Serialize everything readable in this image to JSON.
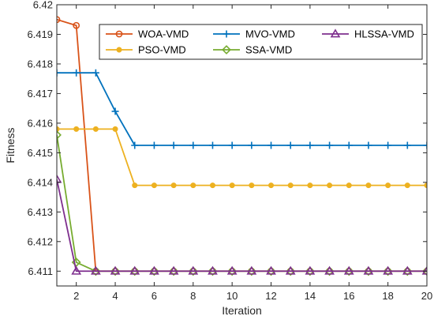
{
  "chart_data": {
    "type": "line",
    "title": "",
    "xlabel": "Iteration",
    "ylabel": "Fitness",
    "xlim": [
      1,
      20
    ],
    "ylim": [
      6.4105,
      6.42
    ],
    "xticks": [
      2,
      4,
      6,
      8,
      10,
      12,
      14,
      16,
      18,
      20
    ],
    "yticks": [
      6.411,
      6.412,
      6.413,
      6.414,
      6.415,
      6.416,
      6.417,
      6.418,
      6.419,
      6.42
    ],
    "ytick_labels": [
      "6.411",
      "6.412",
      "6.413",
      "6.414",
      "6.415",
      "6.416",
      "6.417",
      "6.418",
      "6.419",
      "6.42"
    ],
    "grid": false,
    "legend_position": "top-right",
    "x": [
      1,
      2,
      3,
      4,
      5,
      6,
      7,
      8,
      9,
      10,
      11,
      12,
      13,
      14,
      15,
      16,
      17,
      18,
      19,
      20
    ],
    "series": [
      {
        "name": "WOA-VMD",
        "color": "#D95319",
        "marker": "circle",
        "values": [
          6.4195,
          6.4193,
          6.411,
          6.411,
          6.411,
          6.411,
          6.411,
          6.411,
          6.411,
          6.411,
          6.411,
          6.411,
          6.411,
          6.411,
          6.411,
          6.411,
          6.411,
          6.411,
          6.411,
          6.411
        ]
      },
      {
        "name": "PSO-VMD",
        "color": "#EDB120",
        "marker": "dot",
        "values": [
          6.4158,
          6.4158,
          6.4158,
          6.4158,
          6.4139,
          6.4139,
          6.4139,
          6.4139,
          6.4139,
          6.4139,
          6.4139,
          6.4139,
          6.4139,
          6.4139,
          6.4139,
          6.4139,
          6.4139,
          6.4139,
          6.4139,
          6.4139
        ]
      },
      {
        "name": "MVO-VMD",
        "color": "#0072BD",
        "marker": "plus",
        "values": [
          6.4177,
          6.4177,
          6.4177,
          6.4164,
          6.41525,
          6.41525,
          6.41525,
          6.41525,
          6.41525,
          6.41525,
          6.41525,
          6.41525,
          6.41525,
          6.41525,
          6.41525,
          6.41525,
          6.41525,
          6.41525,
          6.41525,
          6.41525
        ]
      },
      {
        "name": "SSA-VMD",
        "color": "#77AC30",
        "marker": "diamond",
        "values": [
          6.4156,
          6.4113,
          6.411,
          6.411,
          6.411,
          6.411,
          6.411,
          6.411,
          6.411,
          6.411,
          6.411,
          6.411,
          6.411,
          6.411,
          6.411,
          6.411,
          6.411,
          6.411,
          6.411,
          6.411
        ]
      },
      {
        "name": "HLSSA-VMD",
        "color": "#7E2F8E",
        "marker": "triangle",
        "values": [
          6.4141,
          6.411,
          6.411,
          6.411,
          6.411,
          6.411,
          6.411,
          6.411,
          6.411,
          6.411,
          6.411,
          6.411,
          6.411,
          6.411,
          6.411,
          6.411,
          6.411,
          6.411,
          6.411,
          6.411
        ]
      }
    ],
    "legend_layout": [
      [
        0,
        2,
        4
      ],
      [
        1,
        3
      ]
    ]
  }
}
